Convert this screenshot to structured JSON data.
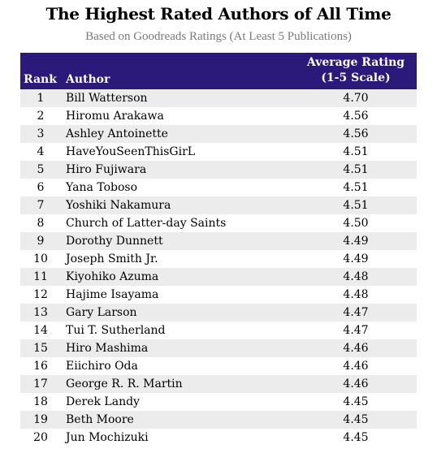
{
  "chart_data": {
    "type": "table",
    "title": "The Highest Rated Authors of All Time",
    "subtitle": "Based on Goodreads Ratings (At Least 5 Publications)",
    "columns": [
      "Rank",
      "Author",
      "Average Rating (1-5 Scale)"
    ],
    "header": {
      "rank": "Rank",
      "author": "Author",
      "rating_line1": "Average Rating",
      "rating_line2": "(1-5 Scale)"
    },
    "rows": [
      {
        "rank": "1",
        "author": "Bill Watterson",
        "rating": "4.70"
      },
      {
        "rank": "2",
        "author": "Hiromu Arakawa",
        "rating": "4.56"
      },
      {
        "rank": "3",
        "author": "Ashley Antoinette",
        "rating": "4.56"
      },
      {
        "rank": "4",
        "author": "HaveYouSeenThisGirL",
        "rating": "4.51"
      },
      {
        "rank": "5",
        "author": "Hiro Fujiwara",
        "rating": "4.51"
      },
      {
        "rank": "6",
        "author": "Yana Toboso",
        "rating": "4.51"
      },
      {
        "rank": "7",
        "author": "Yoshiki Nakamura",
        "rating": "4.51"
      },
      {
        "rank": "8",
        "author": "Church of Latter-day Saints",
        "rating": "4.50"
      },
      {
        "rank": "9",
        "author": "Dorothy Dunnett",
        "rating": "4.49"
      },
      {
        "rank": "10",
        "author": "Joseph Smith Jr.",
        "rating": "4.49"
      },
      {
        "rank": "11",
        "author": "Kiyohiko Azuma",
        "rating": "4.48"
      },
      {
        "rank": "12",
        "author": "Hajime Isayama",
        "rating": "4.48"
      },
      {
        "rank": "13",
        "author": "Gary Larson",
        "rating": "4.47"
      },
      {
        "rank": "14",
        "author": "Tui T. Sutherland",
        "rating": "4.47"
      },
      {
        "rank": "15",
        "author": "Hiro Mashima",
        "rating": "4.46"
      },
      {
        "rank": "16",
        "author": "Eiichiro Oda",
        "rating": "4.46"
      },
      {
        "rank": "17",
        "author": "George R. R. Martin",
        "rating": "4.46"
      },
      {
        "rank": "18",
        "author": "Derek Landy",
        "rating": "4.45"
      },
      {
        "rank": "19",
        "author": "Beth Moore",
        "rating": "4.45"
      },
      {
        "rank": "20",
        "author": "Jun Mochizuki",
        "rating": "4.45"
      }
    ],
    "colors": {
      "header_bg": "#2c1a7a",
      "header_text": "#ffffff",
      "stripe": "#ececec"
    }
  }
}
